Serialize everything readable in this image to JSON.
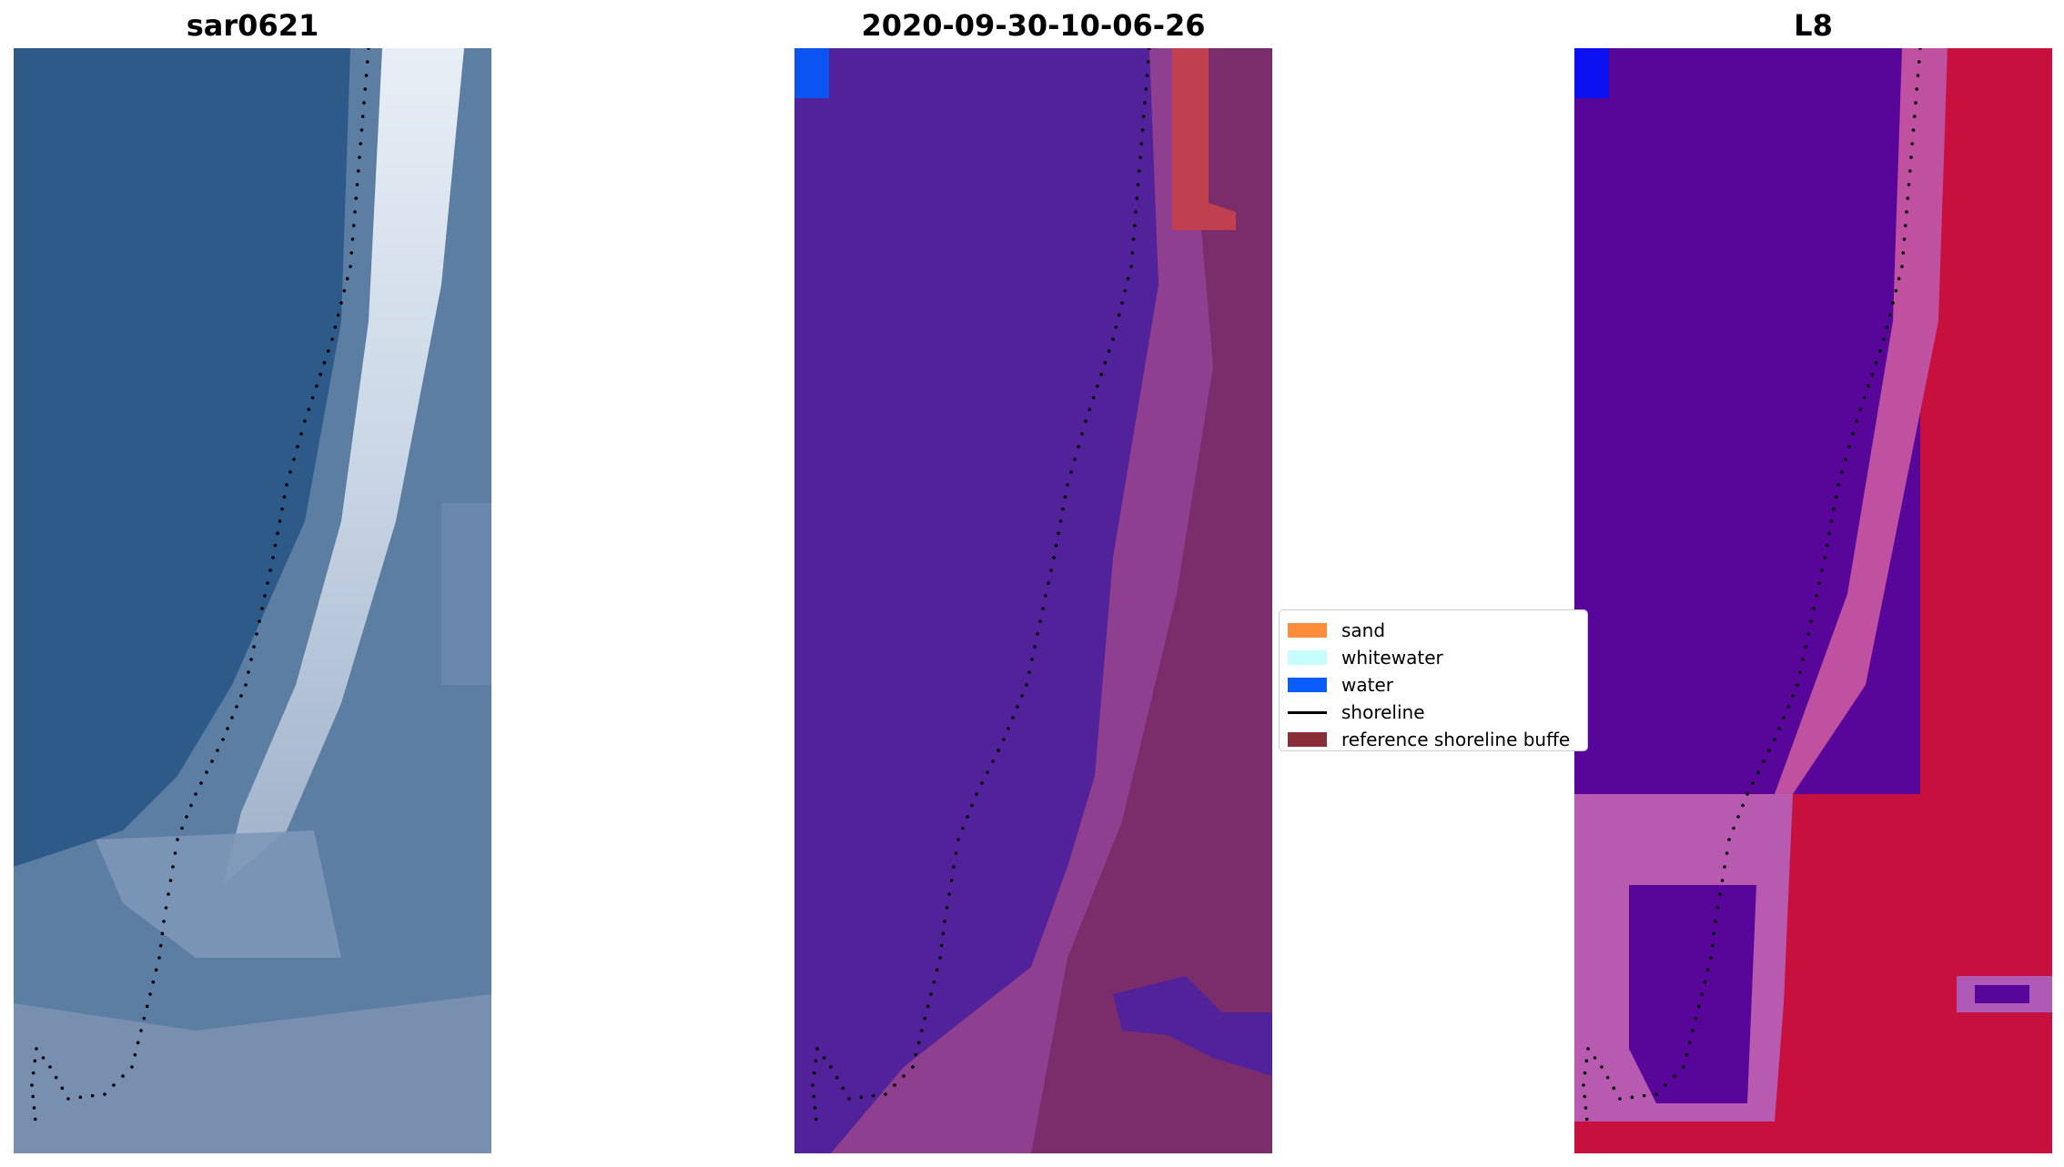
{
  "panels": [
    {
      "title": "sar0621"
    },
    {
      "title": "2020-09-30-10-06-26"
    },
    {
      "title": "L8"
    }
  ],
  "legend": {
    "items": [
      {
        "label": "sand",
        "color": "#ff8c3a"
      },
      {
        "label": "whitewater",
        "color": "#c8fdfd"
      },
      {
        "label": "water",
        "color": "#0a5cff"
      },
      {
        "label": "shoreline",
        "color": "#000000"
      },
      {
        "label": "reference shoreline buffe",
        "color": "#8b2d36"
      }
    ]
  }
}
